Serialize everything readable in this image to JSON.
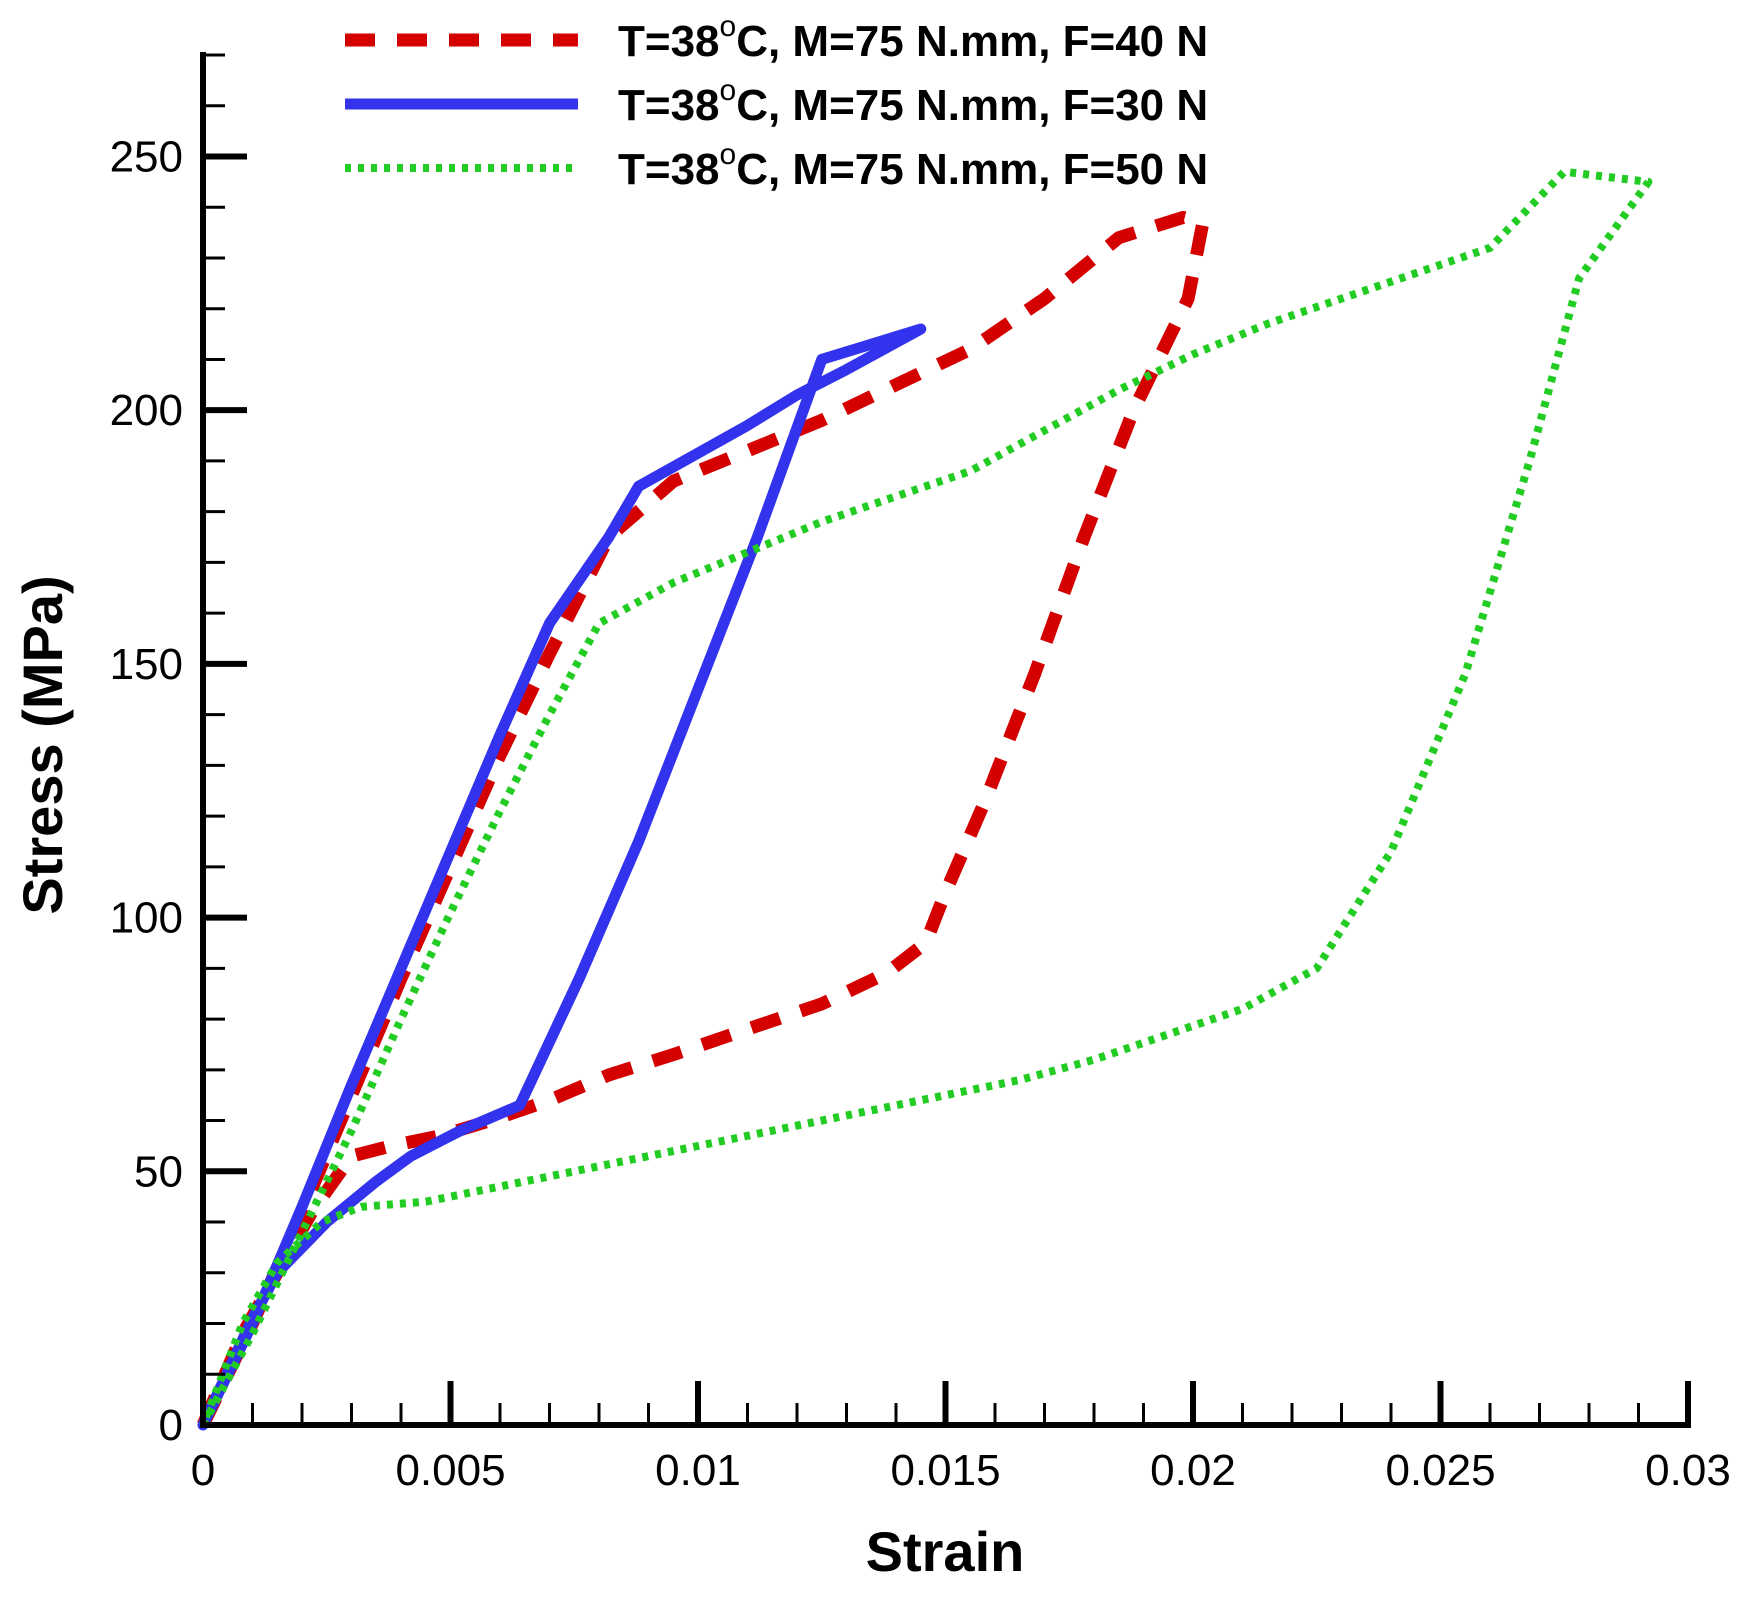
{
  "chart_data": {
    "type": "line",
    "title": "",
    "xlabel": "Strain",
    "ylabel": "Stress (MPa)",
    "xlim": [
      0,
      0.03
    ],
    "ylim": [
      0,
      270
    ],
    "x_ticks": [
      0,
      0.005,
      0.01,
      0.015,
      0.02,
      0.025,
      0.03
    ],
    "x_tick_labels": [
      "0",
      "0.005",
      "0.01",
      "0.015",
      "0.02",
      "0.025",
      "0.03"
    ],
    "y_ticks": [
      0,
      50,
      100,
      150,
      200,
      250
    ],
    "y_tick_labels": [
      "0",
      "50",
      "100",
      "150",
      "200",
      "250"
    ],
    "x_minor_step": 0.001,
    "y_minor_step": 10,
    "grid": false,
    "legend_position": "top",
    "series": [
      {
        "name": "T=38°C, M=75 N.mm, F=40 N",
        "legend_label": {
          "prefix": "T=38",
          "superscript": "o",
          "suffix": "C, M=75 N.mm, F=40 N"
        },
        "color": "#d40000",
        "style": "dashed",
        "x": [
          0,
          0.001,
          0.002,
          0.003,
          0.004,
          0.005,
          0.006,
          0.007,
          0.0082,
          0.0095,
          0.011,
          0.0125,
          0.014,
          0.0155,
          0.017,
          0.0185,
          0.0198,
          0.0202,
          0.0199,
          0.0188,
          0.0178,
          0.0168,
          0.0158,
          0.015,
          0.0146,
          0.0138,
          0.0125,
          0.011,
          0.0095,
          0.0082,
          0.007,
          0.0058,
          0.0048,
          0.0038,
          0.003,
          0.0022,
          0.0015,
          0.0008,
          0
        ],
        "y": [
          0,
          20,
          42,
          65,
          88,
          110,
          132,
          152,
          175,
          186,
          192,
          198,
          205,
          212,
          222,
          234,
          238,
          237,
          222,
          200,
          175,
          148,
          123,
          105,
          95,
          89,
          83,
          78,
          73,
          69,
          64,
          60,
          57,
          55,
          53,
          42,
          30,
          18,
          0
        ]
      },
      {
        "name": "T=38°C, M=75 N.mm, F=30 N",
        "legend_label": {
          "prefix": "T=38",
          "superscript": "o",
          "suffix": "C, M=75 N.mm, F=30 N"
        },
        "color": "#3333ee",
        "style": "solid",
        "x": [
          0,
          0.001,
          0.002,
          0.003,
          0.004,
          0.005,
          0.006,
          0.007,
          0.0082,
          0.0088,
          0.0099,
          0.011,
          0.012,
          0.013,
          0.0145,
          0.0125,
          0.0112,
          0.01,
          0.0088,
          0.0076,
          0.0064,
          0.0052,
          0.0042,
          0.0035,
          0.0025,
          0.0015,
          0.001,
          0
        ],
        "y": [
          0,
          20,
          43,
          67,
          90,
          113,
          136,
          158,
          175,
          185,
          191,
          197,
          203,
          208,
          216,
          210,
          175,
          145,
          115,
          88,
          63,
          58,
          53,
          48,
          40,
          30,
          21,
          0
        ]
      },
      {
        "name": "T=38°C, M=75 N.mm, F=50 N",
        "legend_label": {
          "prefix": "T=38",
          "superscript": "o",
          "suffix": "C, M=75 N.mm, F=50 N"
        },
        "color": "#22cc22",
        "style": "dotted",
        "x": [
          0,
          0.001,
          0.002,
          0.003,
          0.004,
          0.005,
          0.006,
          0.007,
          0.008,
          0.0095,
          0.011,
          0.0125,
          0.014,
          0.0155,
          0.017,
          0.0185,
          0.02,
          0.0215,
          0.023,
          0.0245,
          0.026,
          0.0275,
          0.0292,
          0.0278,
          0.0268,
          0.0255,
          0.024,
          0.0225,
          0.021,
          0.0195,
          0.018,
          0.0165,
          0.015,
          0.0135,
          0.012,
          0.0105,
          0.009,
          0.0075,
          0.006,
          0.0045,
          0.0032,
          0.0024,
          0.0015,
          0.0008,
          0
        ],
        "y": [
          0,
          18,
          38,
          58,
          80,
          101,
          121,
          140,
          158,
          166,
          172,
          178,
          183,
          188,
          196,
          204,
          211,
          217,
          222,
          227,
          232,
          247,
          245,
          226,
          190,
          148,
          113,
          90,
          82,
          77,
          72,
          68,
          65,
          62,
          59,
          56,
          53,
          50,
          47,
          44,
          43,
          40,
          32,
          20,
          0
        ]
      }
    ]
  }
}
